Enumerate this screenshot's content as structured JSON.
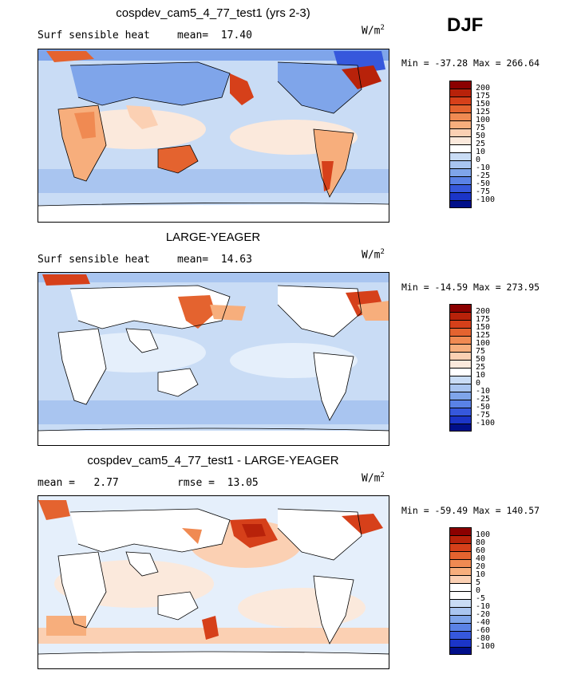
{
  "season": "DJF",
  "panels": [
    {
      "title": "cospdev_cam5_4_77_test1 (yrs 2-3)",
      "variable": "Surf sensible heat",
      "stat1": "mean=  17.40",
      "stat2": "",
      "units_base": "W/m",
      "units_exp": "2",
      "minmax": "Min = -37.28 Max = 266.64",
      "colorbar": {
        "levels": [
          "200",
          "175",
          "150",
          "125",
          "100",
          "75",
          "50",
          "25",
          "10",
          "0",
          "-10",
          "-25",
          "-50",
          "-75",
          "-100"
        ],
        "colors": [
          "#8b0000",
          "#b8220a",
          "#d6401a",
          "#e4632f",
          "#f08a52",
          "#f7ae7c",
          "#fbd0b3",
          "#fbe9dc",
          "#ffffff",
          "#c9dcf5",
          "#a9c5f0",
          "#7fa5ea",
          "#5a82e6",
          "#3658dc",
          "#1b35c8",
          "#000f8a"
        ]
      }
    },
    {
      "title": "LARGE-YEAGER",
      "variable": "Surf sensible heat",
      "stat1": "mean=  14.63",
      "stat2": "",
      "units_base": "W/m",
      "units_exp": "2",
      "minmax": "Min = -14.59 Max = 273.95",
      "colorbar": {
        "levels": [
          "200",
          "175",
          "150",
          "125",
          "100",
          "75",
          "50",
          "25",
          "10",
          "0",
          "-10",
          "-25",
          "-50",
          "-75",
          "-100"
        ],
        "colors": [
          "#8b0000",
          "#b8220a",
          "#d6401a",
          "#e4632f",
          "#f08a52",
          "#f7ae7c",
          "#fbd0b3",
          "#fbe9dc",
          "#ffffff",
          "#c9dcf5",
          "#a9c5f0",
          "#7fa5ea",
          "#5a82e6",
          "#3658dc",
          "#1b35c8",
          "#000f8a"
        ]
      }
    },
    {
      "title": "cospdev_cam5_4_77_test1 - LARGE-YEAGER",
      "variable": "mean =   2.77",
      "stat1": "rmse =  13.05",
      "stat2": "",
      "units_base": "W/m",
      "units_exp": "2",
      "minmax": "Min = -59.49 Max = 140.57",
      "colorbar": {
        "levels": [
          "100",
          "80",
          "60",
          "40",
          "20",
          "10",
          "5",
          "0",
          "-5",
          "-10",
          "-20",
          "-40",
          "-60",
          "-80",
          "-100"
        ],
        "colors": [
          "#8b0000",
          "#b8220a",
          "#d6401a",
          "#e4632f",
          "#f08a52",
          "#f7ae7c",
          "#fbd0b3",
          "#ffffff",
          "#ffffff",
          "#c9dcf5",
          "#a9c5f0",
          "#7fa5ea",
          "#5a82e6",
          "#3658dc",
          "#1b35c8",
          "#000f8a"
        ]
      }
    }
  ]
}
